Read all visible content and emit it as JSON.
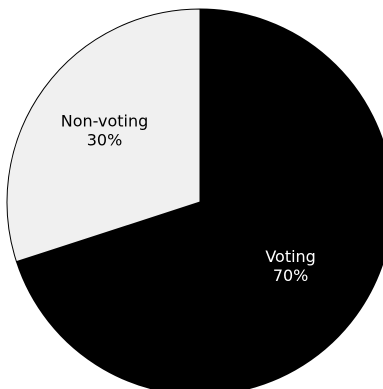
{
  "chart_data": {
    "type": "pie",
    "categories": [
      "Voting",
      "Non-voting"
    ],
    "values": [
      70,
      30
    ],
    "value_labels": [
      "70%",
      "30%"
    ],
    "colors": [
      "#000000",
      "#f0f0f0"
    ],
    "label_colors": [
      "#ffffff",
      "#000000"
    ],
    "slice_border_color": "#000000",
    "start": "12 o'clock",
    "direction": "clockwise",
    "legend": "none"
  }
}
